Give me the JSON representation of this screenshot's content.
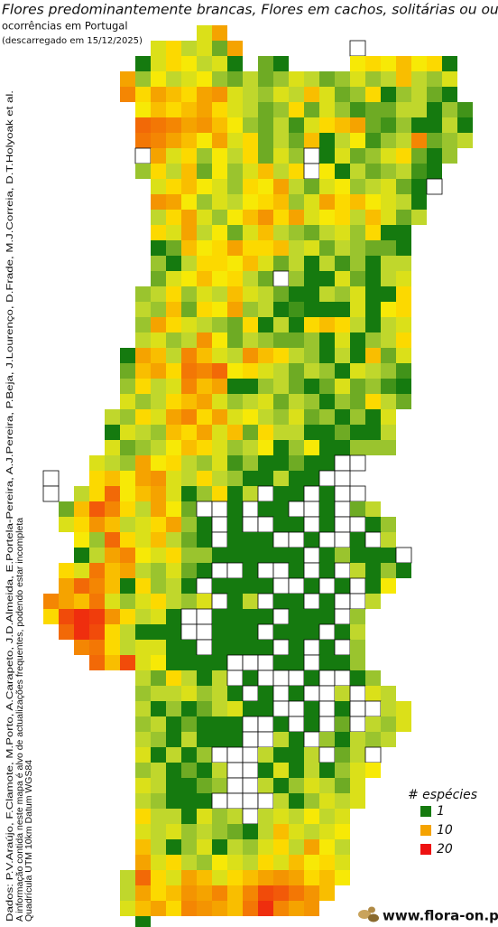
{
  "header": {
    "title": "Flores predominantemente brancas, Flores em cachos, solitárias ou ou",
    "subtitle": "ocorrências em Portugal",
    "date": "(descarregado em 15/12/2025)"
  },
  "map": {
    "rows": [
      [
        null,
        null,
        null,
        null,
        null,
        null,
        null,
        null,
        null,
        null,
        6,
        10
      ],
      [
        null,
        null,
        null,
        null,
        null,
        null,
        null,
        6,
        8,
        5,
        6,
        3,
        10,
        null,
        null,
        null,
        null,
        null,
        null,
        null,
        0
      ],
      [
        null,
        null,
        null,
        null,
        null,
        null,
        1,
        6,
        8,
        7,
        5,
        6,
        1,
        null,
        3,
        1,
        null,
        null,
        null,
        null,
        7,
        8,
        7,
        9,
        7,
        8,
        1
      ],
      [
        null,
        null,
        null,
        null,
        null,
        10,
        4,
        7,
        5,
        6,
        7,
        4,
        3,
        5,
        3,
        4,
        6,
        5,
        3,
        4,
        6,
        4,
        5,
        9,
        5,
        4,
        6
      ],
      [
        null,
        null,
        null,
        null,
        null,
        12,
        8,
        10,
        9,
        8,
        10,
        11,
        6,
        5,
        4,
        6,
        5,
        9,
        6,
        3,
        4,
        8,
        1,
        4,
        5,
        3,
        1
      ],
      [
        null,
        null,
        null,
        null,
        null,
        null,
        7,
        9,
        8,
        9,
        10,
        8,
        6,
        5,
        3,
        4,
        8,
        3,
        6,
        4,
        2,
        3,
        3,
        5,
        5,
        1,
        4,
        2
      ],
      [
        null,
        null,
        null,
        null,
        null,
        null,
        14,
        13,
        12,
        10,
        11,
        9,
        7,
        4,
        3,
        5,
        2,
        6,
        8,
        9,
        10,
        3,
        2,
        4,
        1,
        1,
        5,
        1
      ],
      [
        null,
        null,
        null,
        null,
        null,
        null,
        13,
        12,
        10,
        9,
        7,
        10,
        6,
        8,
        3,
        5,
        3,
        9,
        1,
        5,
        7,
        2,
        4,
        5,
        12,
        3,
        4,
        5
      ],
      [
        null,
        null,
        null,
        null,
        null,
        null,
        0,
        10,
        6,
        8,
        4,
        7,
        5,
        8,
        3,
        6,
        4,
        0,
        1,
        6,
        3,
        4,
        6,
        8,
        3,
        1,
        4
      ],
      [
        null,
        null,
        null,
        null,
        null,
        null,
        4,
        8,
        5,
        9,
        3,
        7,
        4,
        6,
        9,
        5,
        8,
        0,
        7,
        1,
        5,
        3,
        4,
        5,
        2,
        1
      ],
      [
        null,
        null,
        null,
        null,
        null,
        null,
        null,
        6,
        8,
        9,
        7,
        6,
        4,
        8,
        7,
        10,
        5,
        3,
        6,
        7,
        4,
        5,
        6,
        3,
        1,
        0
      ],
      [
        null,
        null,
        null,
        null,
        null,
        null,
        null,
        11,
        10,
        7,
        4,
        6,
        5,
        7,
        8,
        9,
        4,
        6,
        10,
        8,
        9,
        7,
        6,
        5,
        1
      ],
      [
        null,
        null,
        null,
        null,
        null,
        null,
        null,
        5,
        8,
        10,
        6,
        4,
        7,
        9,
        11,
        8,
        10,
        6,
        7,
        8,
        5,
        9,
        6,
        3,
        5
      ],
      [
        null,
        null,
        null,
        null,
        null,
        null,
        null,
        8,
        6,
        10,
        5,
        7,
        3,
        6,
        9,
        5,
        4,
        3,
        5,
        6,
        4,
        8,
        1,
        1
      ],
      [
        null,
        null,
        null,
        null,
        null,
        null,
        null,
        1,
        3,
        9,
        7,
        8,
        10,
        8,
        8,
        9,
        5,
        6,
        3,
        5,
        4,
        3,
        3,
        1
      ],
      [
        null,
        null,
        null,
        null,
        null,
        null,
        null,
        4,
        1,
        5,
        8,
        8,
        7,
        9,
        6,
        3,
        5,
        1,
        5,
        2,
        4,
        1,
        5,
        5
      ],
      [
        null,
        null,
        null,
        null,
        null,
        null,
        null,
        3,
        6,
        7,
        9,
        7,
        8,
        5,
        3,
        0,
        4,
        1,
        1,
        6,
        3,
        1,
        5,
        6
      ],
      [
        null,
        null,
        null,
        null,
        null,
        null,
        4,
        5,
        8,
        4,
        6,
        5,
        9,
        6,
        5,
        3,
        1,
        1,
        5,
        4,
        6,
        1,
        1,
        8
      ],
      [
        null,
        null,
        null,
        null,
        null,
        null,
        5,
        4,
        9,
        3,
        8,
        7,
        10,
        4,
        5,
        1,
        2,
        1,
        1,
        1,
        6,
        1,
        7,
        8
      ],
      [
        null,
        null,
        null,
        null,
        null,
        null,
        4,
        10,
        8,
        6,
        5,
        4,
        3,
        8,
        1,
        5,
        1,
        8,
        9,
        8,
        5,
        1,
        5,
        6
      ],
      [
        null,
        null,
        null,
        null,
        null,
        null,
        5,
        6,
        4,
        5,
        11,
        7,
        3,
        5,
        4,
        3,
        3,
        4,
        1,
        6,
        1,
        4,
        5,
        8
      ],
      [
        null,
        null,
        null,
        null,
        null,
        1,
        10,
        9,
        5,
        12,
        9,
        6,
        5,
        11,
        9,
        8,
        5,
        4,
        1,
        5,
        1,
        9,
        3,
        6
      ],
      [
        null,
        null,
        null,
        null,
        null,
        3,
        9,
        10,
        8,
        13,
        12,
        14,
        7,
        8,
        6,
        5,
        3,
        5,
        4,
        1,
        6,
        5,
        4,
        2
      ],
      [
        null,
        null,
        null,
        null,
        null,
        4,
        8,
        5,
        6,
        12,
        9,
        10,
        1,
        1,
        4,
        5,
        3,
        1,
        3,
        6,
        3,
        4,
        2,
        1
      ],
      [
        null,
        null,
        null,
        null,
        null,
        6,
        4,
        5,
        8,
        9,
        10,
        6,
        4,
        5,
        6,
        3,
        5,
        4,
        1,
        4,
        3,
        8,
        5,
        3
      ],
      [
        null,
        null,
        null,
        null,
        5,
        4,
        8,
        6,
        10,
        12,
        8,
        10,
        6,
        7,
        5,
        4,
        6,
        3,
        4,
        1,
        4,
        1,
        6
      ],
      [
        null,
        null,
        null,
        null,
        1,
        6,
        5,
        4,
        9,
        8,
        10,
        6,
        9,
        3,
        8,
        5,
        5,
        1,
        1,
        3,
        1,
        1,
        5
      ],
      [
        null,
        null,
        null,
        null,
        6,
        3,
        4,
        5,
        7,
        9,
        8,
        6,
        4,
        5,
        7,
        1,
        4,
        7,
        1,
        1,
        4,
        4,
        4
      ],
      [
        null,
        null,
        null,
        6,
        5,
        4,
        10,
        7,
        8,
        5,
        4,
        6,
        2,
        4,
        1,
        1,
        3,
        1,
        1,
        0,
        0
      ],
      [
        0,
        null,
        null,
        8,
        9,
        7,
        10,
        11,
        6,
        5,
        8,
        5,
        4,
        1,
        1,
        5,
        1,
        1,
        0,
        0
      ],
      [
        0,
        null,
        5,
        8,
        14,
        7,
        9,
        10,
        6,
        1,
        4,
        8,
        1,
        5,
        0,
        1,
        1,
        0,
        1,
        0,
        0
      ],
      [
        null,
        3,
        9,
        15,
        12,
        8,
        5,
        10,
        7,
        3,
        0,
        0,
        1,
        0,
        1,
        1,
        0,
        0,
        1,
        0,
        3,
        5
      ],
      [
        null,
        6,
        8,
        11,
        9,
        5,
        6,
        8,
        10,
        4,
        1,
        0,
        1,
        0,
        0,
        1,
        1,
        0,
        1,
        0,
        0,
        1,
        4
      ],
      [
        null,
        null,
        7,
        4,
        14,
        8,
        6,
        9,
        5,
        3,
        1,
        0,
        1,
        1,
        1,
        0,
        0,
        1,
        0,
        0,
        1,
        0,
        5
      ],
      [
        null,
        null,
        1,
        5,
        10,
        12,
        7,
        6,
        8,
        4,
        4,
        1,
        1,
        1,
        1,
        1,
        1,
        0,
        1,
        4,
        1,
        1,
        1,
        0
      ],
      [
        null,
        8,
        6,
        13,
        9,
        10,
        5,
        4,
        6,
        3,
        1,
        0,
        0,
        1,
        0,
        0,
        1,
        0,
        1,
        0,
        5,
        1,
        4,
        1
      ],
      [
        null,
        10,
        14,
        12,
        9,
        1,
        8,
        4,
        5,
        1,
        0,
        1,
        1,
        1,
        1,
        0,
        0,
        1,
        0,
        1,
        0,
        1,
        7
      ],
      [
        12,
        10,
        9,
        13,
        6,
        4,
        6,
        8,
        5,
        4,
        6,
        0,
        1,
        5,
        0,
        1,
        1,
        0,
        1,
        0,
        0,
        5
      ],
      [
        8,
        16,
        18,
        17,
        11,
        8,
        5,
        6,
        1,
        0,
        0,
        1,
        1,
        1,
        1,
        0,
        1,
        1,
        1,
        0,
        4
      ],
      [
        null,
        14,
        18,
        16,
        8,
        5,
        1,
        1,
        1,
        0,
        0,
        1,
        1,
        1,
        0,
        1,
        1,
        1,
        0,
        1,
        5
      ],
      [
        null,
        null,
        12,
        13,
        8,
        5,
        6,
        6,
        1,
        1,
        0,
        1,
        1,
        1,
        1,
        0,
        1,
        0,
        1,
        0,
        4
      ],
      [
        null,
        null,
        null,
        14,
        9,
        16,
        6,
        7,
        1,
        1,
        1,
        1,
        0,
        0,
        0,
        1,
        1,
        0,
        1,
        1,
        4
      ],
      [
        null,
        null,
        null,
        null,
        null,
        null,
        5,
        3,
        8,
        5,
        1,
        5,
        0,
        1,
        0,
        0,
        0,
        1,
        0,
        0,
        1,
        4
      ],
      [
        null,
        null,
        null,
        null,
        null,
        null,
        4,
        5,
        5,
        6,
        4,
        5,
        1,
        0,
        1,
        0,
        1,
        0,
        0,
        5,
        0,
        6,
        5
      ],
      [
        null,
        null,
        null,
        null,
        null,
        null,
        5,
        1,
        4,
        1,
        3,
        5,
        6,
        1,
        1,
        0,
        0,
        1,
        0,
        1,
        0,
        0,
        5,
        6
      ],
      [
        null,
        null,
        null,
        null,
        null,
        null,
        4,
        5,
        1,
        3,
        1,
        1,
        1,
        0,
        0,
        1,
        0,
        1,
        0,
        3,
        0,
        5,
        4,
        6
      ],
      [
        null,
        null,
        null,
        null,
        null,
        null,
        5,
        4,
        1,
        5,
        1,
        1,
        1,
        0,
        0,
        5,
        1,
        0,
        4,
        1,
        5,
        4,
        5
      ],
      [
        null,
        null,
        null,
        null,
        null,
        null,
        6,
        1,
        5,
        1,
        4,
        0,
        0,
        0,
        5,
        1,
        1,
        5,
        0,
        3,
        5,
        0
      ],
      [
        null,
        null,
        null,
        null,
        null,
        null,
        4,
        5,
        1,
        3,
        1,
        5,
        0,
        0,
        1,
        6,
        1,
        5,
        1,
        4,
        6,
        7
      ],
      [
        null,
        null,
        null,
        null,
        null,
        null,
        6,
        5,
        1,
        1,
        3,
        4,
        0,
        0,
        5,
        1,
        4,
        6,
        5,
        3,
        6
      ],
      [
        null,
        null,
        null,
        null,
        null,
        null,
        5,
        4,
        1,
        1,
        1,
        0,
        0,
        0,
        0,
        5,
        1,
        4,
        6,
        5,
        6
      ],
      [
        null,
        null,
        null,
        null,
        null,
        null,
        8,
        5,
        5,
        1,
        6,
        4,
        5,
        0,
        5,
        6,
        5,
        7,
        5,
        6
      ],
      [
        null,
        null,
        null,
        null,
        null,
        null,
        6,
        5,
        6,
        4,
        5,
        4,
        3,
        1,
        5,
        9,
        6,
        5,
        6,
        7
      ],
      [
        null,
        null,
        null,
        null,
        null,
        null,
        9,
        5,
        1,
        4,
        6,
        1,
        5,
        4,
        6,
        8,
        5,
        10,
        7,
        5
      ],
      [
        null,
        null,
        null,
        null,
        null,
        null,
        10,
        6,
        8,
        5,
        4,
        7,
        6,
        5,
        8,
        6,
        9,
        7,
        8,
        6
      ],
      [
        null,
        null,
        null,
        null,
        null,
        5,
        14,
        8,
        6,
        10,
        9,
        6,
        8,
        9,
        10,
        11,
        10,
        8,
        9,
        7
      ],
      [
        null,
        null,
        null,
        null,
        null,
        5,
        10,
        8,
        9,
        11,
        10,
        12,
        9,
        12,
        16,
        15,
        13,
        11,
        9
      ],
      [
        null,
        null,
        null,
        null,
        null,
        6,
        9,
        10,
        8,
        12,
        11,
        10,
        9,
        13,
        18,
        12,
        10,
        11
      ],
      [
        null,
        null,
        null,
        null,
        null,
        null,
        1
      ]
    ]
  },
  "legend": {
    "title": "# espécies",
    "items": [
      {
        "value": 1,
        "color": "#157a0f"
      },
      {
        "value": 10,
        "color": "#f5a300"
      },
      {
        "value": 20,
        "color": "#ee1111"
      }
    ]
  },
  "credits": [
    "Dados: P.V.Araújo, F.Clamote, M.Porto, A.Carapeto, J.D.Almeida, E.Portela-Pereira, A.J.Pereira, P.Beja, J.Lourenço, D.Frade, M.J.Correia, D.T.Holyoak et al.",
    "A informação contida neste mapa é alvo de actualizações frequentes, podendo estar incompleta",
    "Quadrícula UTM 10km Datum WGS84"
  ],
  "footer": "www.flora-on.pt"
}
